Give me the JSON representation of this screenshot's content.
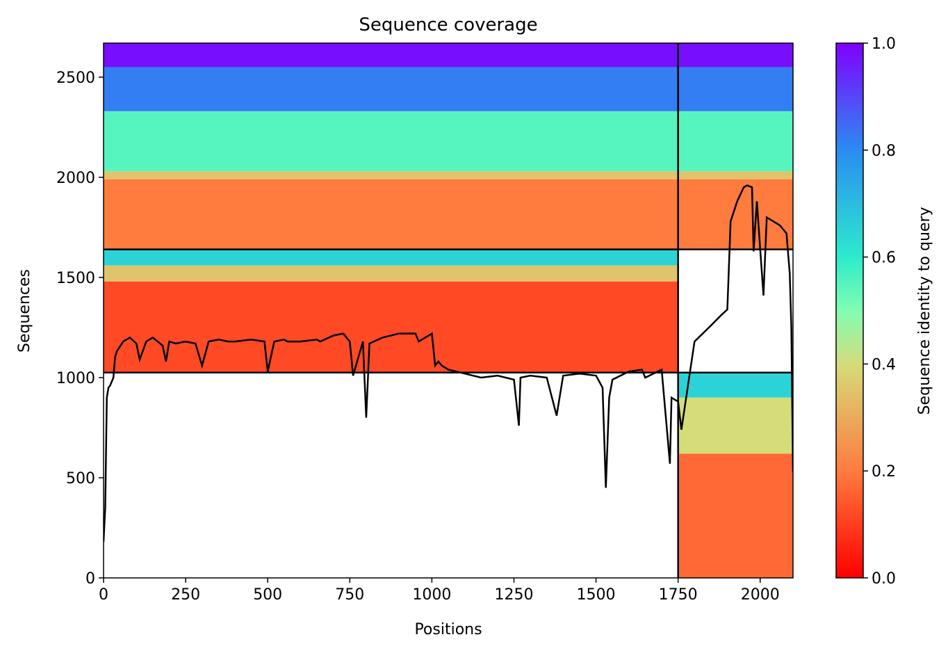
{
  "chart_data": {
    "type": "heatmap",
    "title": "Sequence coverage",
    "xlabel": "Positions",
    "ylabel": "Sequences",
    "xlim": [
      0,
      2100
    ],
    "ylim": [
      0,
      2670
    ],
    "xticks": [
      0,
      250,
      500,
      750,
      1000,
      1250,
      1500,
      1750,
      2000
    ],
    "yticks": [
      0,
      500,
      1000,
      1500,
      2000,
      2500
    ],
    "grid": false,
    "colorbar": {
      "label": "Sequence identity to query",
      "range": [
        0,
        1
      ],
      "ticks": [
        "0.0",
        "0.2",
        "0.4",
        "0.6",
        "0.8",
        "1.0"
      ],
      "colormap": "rainbow_r"
    },
    "chain_boundary_x": 1750,
    "msa_group_boundaries_y": [
      1025,
      1640
    ],
    "msa_blocks": [
      {
        "name": "paired",
        "x": [
          0,
          2100
        ],
        "rows": [
          1640,
          2670
        ],
        "identity": [
          {
            "rows": [
              2550,
              2670
            ],
            "value": 0.98
          },
          {
            "rows": [
              2330,
              2550
            ],
            "value": 0.82
          },
          {
            "rows": [
              2030,
              2330
            ],
            "value": 0.55
          },
          {
            "rows": [
              1990,
              2030
            ],
            "value": 0.35
          },
          {
            "rows": [
              1640,
              1990
            ],
            "value": 0.2
          }
        ]
      },
      {
        "name": "chain-A",
        "x": [
          0,
          1750
        ],
        "rows": [
          1025,
          1640
        ],
        "identity": [
          {
            "rows": [
              1560,
              1640
            ],
            "value": 0.65
          },
          {
            "rows": [
              1480,
              1560
            ],
            "value": 0.35
          },
          {
            "rows": [
              1025,
              1480
            ],
            "value": 0.12
          }
        ]
      },
      {
        "name": "chain-B",
        "x": [
          1750,
          2100
        ],
        "rows": [
          0,
          1025
        ],
        "identity": [
          {
            "rows": [
              900,
              1025
            ],
            "value": 0.65
          },
          {
            "rows": [
              620,
              900
            ],
            "value": 0.4
          },
          {
            "rows": [
              0,
              620
            ],
            "value": 0.17
          }
        ]
      }
    ],
    "coverage_line": {
      "color": "#000000",
      "x": [
        0,
        5,
        10,
        15,
        20,
        30,
        35,
        40,
        60,
        80,
        100,
        110,
        130,
        150,
        180,
        190,
        200,
        220,
        250,
        280,
        300,
        320,
        350,
        380,
        400,
        450,
        490,
        500,
        520,
        550,
        560,
        600,
        650,
        660,
        700,
        730,
        750,
        760,
        790,
        800,
        810,
        850,
        900,
        950,
        960,
        1000,
        1010,
        1020,
        1030,
        1050,
        1100,
        1150,
        1200,
        1250,
        1265,
        1270,
        1300,
        1350,
        1380,
        1400,
        1450,
        1500,
        1520,
        1530,
        1540,
        1550,
        1600,
        1640,
        1650,
        1700,
        1725,
        1730,
        1740,
        1750,
        1760,
        1800,
        1850,
        1880,
        1900,
        1910,
        1930,
        1950,
        1960,
        1975,
        1980,
        1990,
        2000,
        2010,
        2020,
        2040,
        2060,
        2080,
        2090,
        2095,
        2100
      ],
      "y": [
        180,
        350,
        900,
        950,
        960,
        1000,
        1100,
        1130,
        1180,
        1200,
        1170,
        1090,
        1180,
        1200,
        1160,
        1080,
        1180,
        1170,
        1180,
        1170,
        1060,
        1180,
        1190,
        1180,
        1180,
        1190,
        1180,
        1030,
        1180,
        1190,
        1180,
        1180,
        1190,
        1180,
        1210,
        1220,
        1180,
        1010,
        1180,
        800,
        1170,
        1200,
        1220,
        1220,
        1180,
        1220,
        1060,
        1080,
        1060,
        1040,
        1020,
        1000,
        1010,
        990,
        760,
        1000,
        1010,
        1000,
        810,
        1010,
        1020,
        1010,
        950,
        450,
        900,
        990,
        1030,
        1040,
        1000,
        1040,
        570,
        900,
        890,
        880,
        740,
        1180,
        1260,
        1310,
        1340,
        1780,
        1880,
        1950,
        1960,
        1950,
        1630,
        1880,
        1640,
        1410,
        1800,
        1780,
        1760,
        1720,
        1520,
        1250,
        530
      ]
    }
  }
}
